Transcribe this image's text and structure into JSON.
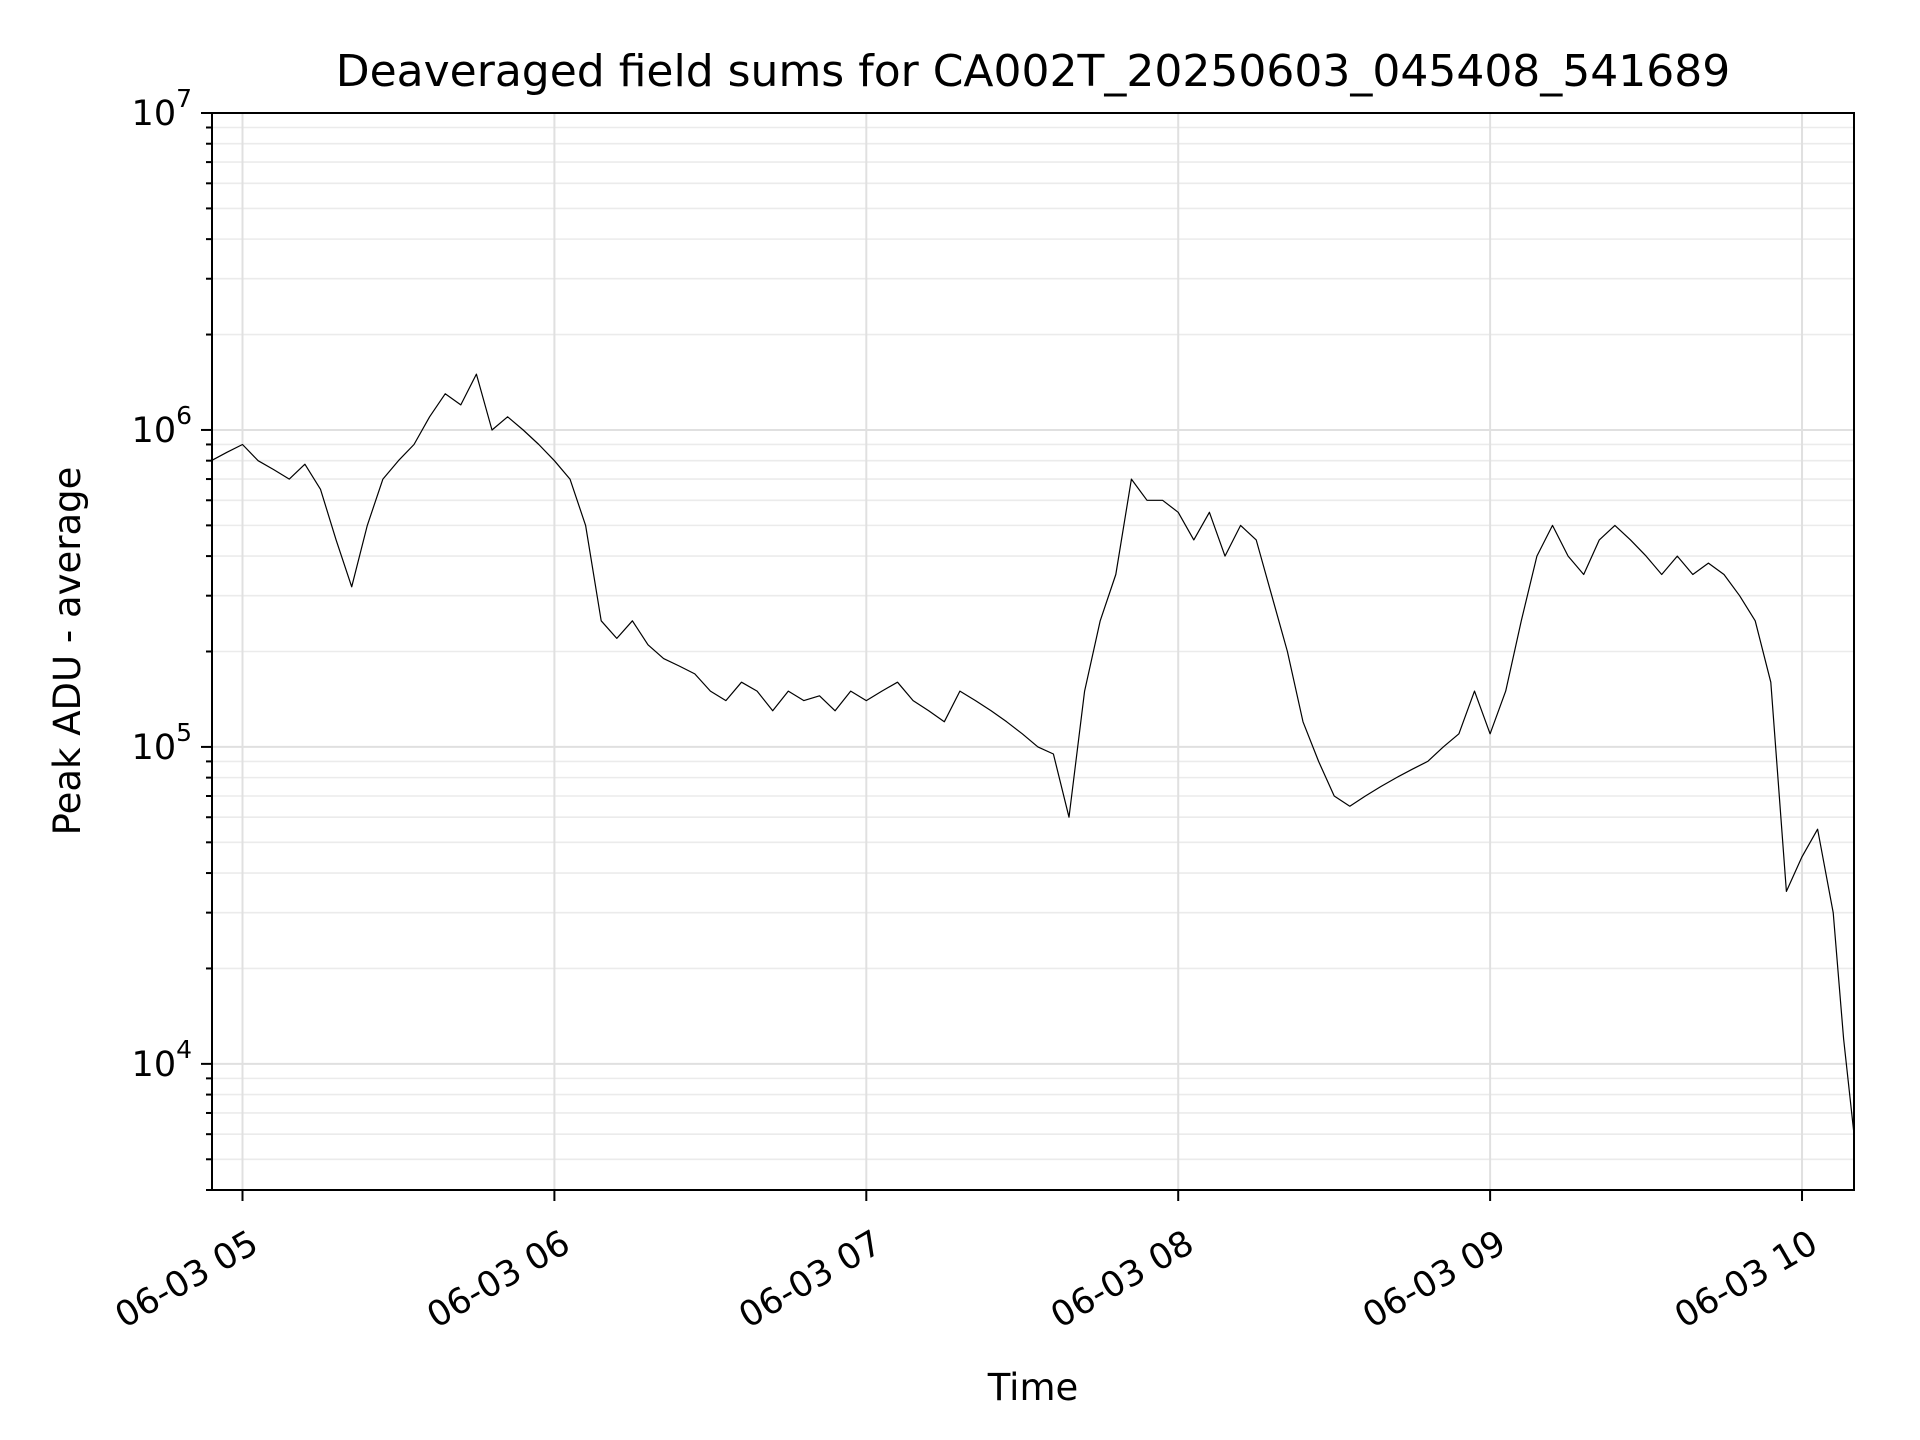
{
  "chart_data": {
    "type": "line",
    "title": "Deaveraged field sums for CA002T_20250603_045408_541689",
    "xlabel": "Time",
    "ylabel": "Peak ADU - average",
    "yscale": "log",
    "ylim": [
      4000,
      10000000
    ],
    "xlim": [
      "2025-06-03 04:54:08",
      "2025-06-03 10:10:00"
    ],
    "grid": true,
    "x_ticks": [
      {
        "time": "2025-06-03 05:00",
        "label": "06-03 05"
      },
      {
        "time": "2025-06-03 06:00",
        "label": "06-03 06"
      },
      {
        "time": "2025-06-03 07:00",
        "label": "06-03 07"
      },
      {
        "time": "2025-06-03 08:00",
        "label": "06-03 08"
      },
      {
        "time": "2025-06-03 09:00",
        "label": "06-03 09"
      },
      {
        "time": "2025-06-03 10:00",
        "label": "06-03 10"
      }
    ],
    "y_ticks": [
      {
        "value": 10000,
        "base": "10",
        "exp": "4"
      },
      {
        "value": 100000,
        "base": "10",
        "exp": "5"
      },
      {
        "value": 1000000,
        "base": "10",
        "exp": "6"
      },
      {
        "value": 10000000,
        "base": "10",
        "exp": "7"
      }
    ],
    "series": [
      {
        "color": "#000000",
        "points": [
          [
            "2025-06-03 04:54",
            800000
          ],
          [
            "2025-06-03 04:57",
            850000
          ],
          [
            "2025-06-03 05:00",
            900000
          ],
          [
            "2025-06-03 05:03",
            800000
          ],
          [
            "2025-06-03 05:06",
            750000
          ],
          [
            "2025-06-03 05:09",
            700000
          ],
          [
            "2025-06-03 05:12",
            780000
          ],
          [
            "2025-06-03 05:15",
            650000
          ],
          [
            "2025-06-03 05:18",
            450000
          ],
          [
            "2025-06-03 05:21",
            320000
          ],
          [
            "2025-06-03 05:24",
            500000
          ],
          [
            "2025-06-03 05:27",
            700000
          ],
          [
            "2025-06-03 05:30",
            800000
          ],
          [
            "2025-06-03 05:33",
            900000
          ],
          [
            "2025-06-03 05:36",
            1100000
          ],
          [
            "2025-06-03 05:39",
            1300000
          ],
          [
            "2025-06-03 05:42",
            1200000
          ],
          [
            "2025-06-03 05:45",
            1500000
          ],
          [
            "2025-06-03 05:48",
            1000000
          ],
          [
            "2025-06-03 05:51",
            1100000
          ],
          [
            "2025-06-03 05:54",
            1000000
          ],
          [
            "2025-06-03 05:57",
            900000
          ],
          [
            "2025-06-03 06:00",
            800000
          ],
          [
            "2025-06-03 06:03",
            700000
          ],
          [
            "2025-06-03 06:06",
            500000
          ],
          [
            "2025-06-03 06:09",
            250000
          ],
          [
            "2025-06-03 06:12",
            220000
          ],
          [
            "2025-06-03 06:15",
            250000
          ],
          [
            "2025-06-03 06:18",
            210000
          ],
          [
            "2025-06-03 06:21",
            190000
          ],
          [
            "2025-06-03 06:24",
            180000
          ],
          [
            "2025-06-03 06:27",
            170000
          ],
          [
            "2025-06-03 06:30",
            150000
          ],
          [
            "2025-06-03 06:33",
            140000
          ],
          [
            "2025-06-03 06:36",
            160000
          ],
          [
            "2025-06-03 06:39",
            150000
          ],
          [
            "2025-06-03 06:42",
            130000
          ],
          [
            "2025-06-03 06:45",
            150000
          ],
          [
            "2025-06-03 06:48",
            140000
          ],
          [
            "2025-06-03 06:51",
            145000
          ],
          [
            "2025-06-03 06:54",
            130000
          ],
          [
            "2025-06-03 06:57",
            150000
          ],
          [
            "2025-06-03 07:00",
            140000
          ],
          [
            "2025-06-03 07:03",
            150000
          ],
          [
            "2025-06-03 07:06",
            160000
          ],
          [
            "2025-06-03 07:09",
            140000
          ],
          [
            "2025-06-03 07:12",
            130000
          ],
          [
            "2025-06-03 07:15",
            120000
          ],
          [
            "2025-06-03 07:18",
            150000
          ],
          [
            "2025-06-03 07:21",
            140000
          ],
          [
            "2025-06-03 07:24",
            130000
          ],
          [
            "2025-06-03 07:27",
            120000
          ],
          [
            "2025-06-03 07:30",
            110000
          ],
          [
            "2025-06-03 07:33",
            100000
          ],
          [
            "2025-06-03 07:36",
            95000
          ],
          [
            "2025-06-03 07:39",
            60000
          ],
          [
            "2025-06-03 07:42",
            150000
          ],
          [
            "2025-06-03 07:45",
            250000
          ],
          [
            "2025-06-03 07:48",
            350000
          ],
          [
            "2025-06-03 07:51",
            700000
          ],
          [
            "2025-06-03 07:54",
            600000
          ],
          [
            "2025-06-03 07:57",
            600000
          ],
          [
            "2025-06-03 08:00",
            550000
          ],
          [
            "2025-06-03 08:03",
            450000
          ],
          [
            "2025-06-03 08:06",
            550000
          ],
          [
            "2025-06-03 08:09",
            400000
          ],
          [
            "2025-06-03 08:12",
            500000
          ],
          [
            "2025-06-03 08:15",
            450000
          ],
          [
            "2025-06-03 08:18",
            300000
          ],
          [
            "2025-06-03 08:21",
            200000
          ],
          [
            "2025-06-03 08:24",
            120000
          ],
          [
            "2025-06-03 08:27",
            90000
          ],
          [
            "2025-06-03 08:30",
            70000
          ],
          [
            "2025-06-03 08:33",
            65000
          ],
          [
            "2025-06-03 08:36",
            70000
          ],
          [
            "2025-06-03 08:39",
            75000
          ],
          [
            "2025-06-03 08:42",
            80000
          ],
          [
            "2025-06-03 08:45",
            85000
          ],
          [
            "2025-06-03 08:48",
            90000
          ],
          [
            "2025-06-03 08:51",
            100000
          ],
          [
            "2025-06-03 08:54",
            110000
          ],
          [
            "2025-06-03 08:57",
            150000
          ],
          [
            "2025-06-03 09:00",
            110000
          ],
          [
            "2025-06-03 09:03",
            150000
          ],
          [
            "2025-06-03 09:06",
            250000
          ],
          [
            "2025-06-03 09:09",
            400000
          ],
          [
            "2025-06-03 09:12",
            500000
          ],
          [
            "2025-06-03 09:15",
            400000
          ],
          [
            "2025-06-03 09:18",
            350000
          ],
          [
            "2025-06-03 09:21",
            450000
          ],
          [
            "2025-06-03 09:24",
            500000
          ],
          [
            "2025-06-03 09:27",
            450000
          ],
          [
            "2025-06-03 09:30",
            400000
          ],
          [
            "2025-06-03 09:33",
            350000
          ],
          [
            "2025-06-03 09:36",
            400000
          ],
          [
            "2025-06-03 09:39",
            350000
          ],
          [
            "2025-06-03 09:42",
            380000
          ],
          [
            "2025-06-03 09:45",
            350000
          ],
          [
            "2025-06-03 09:48",
            300000
          ],
          [
            "2025-06-03 09:51",
            250000
          ],
          [
            "2025-06-03 09:54",
            160000
          ],
          [
            "2025-06-03 09:57",
            35000
          ],
          [
            "2025-06-03 10:00",
            45000
          ],
          [
            "2025-06-03 10:03",
            55000
          ],
          [
            "2025-06-03 10:06",
            30000
          ],
          [
            "2025-06-03 10:08",
            12000
          ],
          [
            "2025-06-03 10:10",
            6000
          ]
        ]
      }
    ]
  }
}
